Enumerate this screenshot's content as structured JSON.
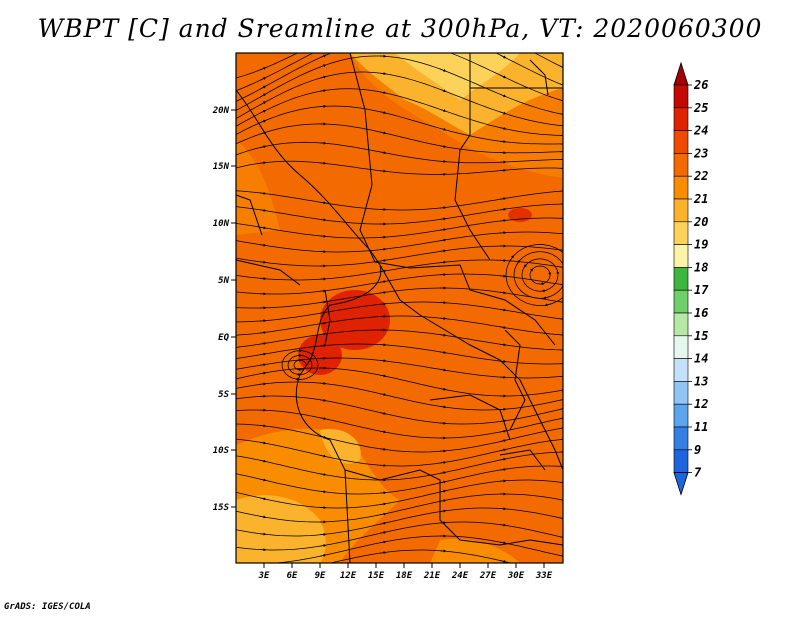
{
  "title": "WBPT [C] and Sreamline at 300hPa, VT: 2020060300",
  "credit": "GrADS: IGES/COLA",
  "map": {
    "lat_labels": [
      "20N",
      "15N",
      "10N",
      "5N",
      "EQ",
      "5S",
      "10S",
      "15S"
    ],
    "lon_labels": [
      "3E",
      "6E",
      "9E",
      "12E",
      "15E",
      "18E",
      "21E",
      "24E",
      "27E",
      "30E",
      "33E"
    ],
    "lat_range": [
      -20,
      24
    ],
    "lon_range": [
      0,
      35
    ]
  },
  "colorbar": {
    "labels": [
      "26",
      "25",
      "24",
      "23",
      "22",
      "21",
      "20",
      "19",
      "18",
      "17",
      "16",
      "15",
      "14",
      "13",
      "12",
      "11",
      "9",
      "7"
    ],
    "colors": [
      "#a50000",
      "#c40a00",
      "#df2200",
      "#f04a00",
      "#f26a00",
      "#fa8c00",
      "#fbb22c",
      "#fcd25a",
      "#fdf3a8",
      "#3cb640",
      "#6fd06a",
      "#b6e9a6",
      "#e6f7ee",
      "#c4e1fa",
      "#92c5f5",
      "#5aa5ee",
      "#347fe4",
      "#1e64dc"
    ],
    "top_color": "#a50000",
    "bottom_color": "#1e64dc"
  }
}
